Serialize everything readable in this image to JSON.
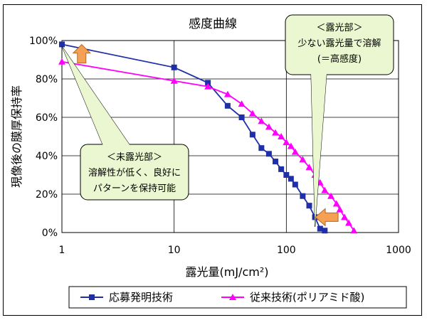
{
  "chart_data": {
    "type": "line",
    "title": "感度曲線",
    "xlabel": "露光量(mJ/cm²)",
    "ylabel": "現像後の膜厚保持率",
    "x_scale": "log",
    "xlim": [
      1,
      1000
    ],
    "ylim": [
      0,
      100
    ],
    "x_ticks": [
      "1",
      "10",
      "100",
      "1000"
    ],
    "y_ticks": [
      "0%",
      "20%",
      "40%",
      "60%",
      "80%",
      "100%"
    ],
    "grid": true,
    "legend_position": "bottom",
    "series": [
      {
        "name": "応募発明技術",
        "color": "#1f2fa8",
        "marker": "square",
        "x": [
          1,
          10,
          20,
          30,
          40,
          50,
          60,
          70,
          80,
          90,
          100,
          110,
          120,
          140,
          160,
          180,
          200,
          220
        ],
        "y": [
          98,
          86,
          78,
          66,
          60,
          51,
          44,
          41,
          37,
          33,
          30,
          28,
          25,
          19,
          14,
          8,
          2,
          1
        ]
      },
      {
        "name": "従来技術(ポリアミド酸)",
        "color": "#ff00ff",
        "marker": "triangle",
        "x": [
          1,
          10,
          20,
          30,
          40,
          50,
          60,
          70,
          80,
          90,
          100,
          110,
          120,
          140,
          160,
          180,
          200,
          220,
          250,
          280,
          300,
          330,
          360,
          400
        ],
        "y": [
          89,
          79,
          76,
          72,
          67,
          62,
          58,
          55,
          52,
          50,
          47,
          45,
          42,
          38,
          34,
          30,
          26,
          22,
          19,
          15,
          12,
          8,
          5,
          1
        ]
      }
    ],
    "annotations": [
      {
        "lines": [
          "＜未露光部＞",
          "溶解性が低く、良好に",
          "パターンを保持可能"
        ]
      },
      {
        "lines": [
          "＜露光部＞",
          "少ない露光量で溶解",
          "(＝高感度)"
        ]
      }
    ]
  },
  "colors": {
    "callout_fill": "#ebf7d0",
    "callout_stroke": "#000000",
    "arrow_fill": "#f5a052",
    "arrow_stroke": "#b06a2a"
  }
}
